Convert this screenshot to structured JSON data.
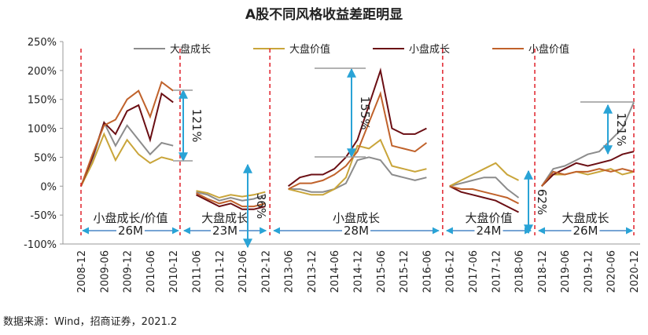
{
  "chart_data": {
    "type": "line",
    "title": "A股不同风格收益差距明显",
    "categories": [
      "2008-12",
      null,
      "2009-06",
      null,
      "2009-12",
      null,
      "2010-06",
      null,
      "2010-12",
      null,
      "2011-06",
      null,
      "2011-12",
      null,
      "2012-06",
      null,
      "2012-12",
      null,
      "2013-06",
      null,
      "2013-12",
      null,
      "2014-06",
      null,
      "2014-12",
      null,
      "2015-06",
      null,
      "2015-12",
      null,
      "2016-06",
      null,
      "2016-12",
      null,
      "2017-06",
      null,
      "2017-12",
      null,
      "2018-06",
      null,
      "2018-12",
      null,
      "2019-06",
      null,
      "2019-12",
      null,
      "2020-06",
      null,
      "2020-12"
    ],
    "series": [
      {
        "name": "大盘成长",
        "color": "#8c8c8c",
        "values": [
          0,
          45,
          110,
          70,
          105,
          80,
          55,
          75,
          70,
          null,
          -10,
          -15,
          -25,
          -20,
          -25,
          -22,
          -15,
          null,
          -5,
          -5,
          -10,
          -10,
          -5,
          5,
          45,
          50,
          45,
          20,
          15,
          10,
          15,
          null,
          0,
          5,
          10,
          15,
          15,
          -5,
          -20,
          null,
          0,
          30,
          35,
          45,
          55,
          60,
          80,
          100,
          145
        ]
      },
      {
        "name": "大盘价值",
        "color": "#c9a53a",
        "values": [
          0,
          40,
          90,
          45,
          80,
          55,
          40,
          50,
          45,
          null,
          -8,
          -12,
          -20,
          -15,
          -18,
          -15,
          -10,
          null,
          -5,
          -10,
          -15,
          -15,
          -5,
          15,
          70,
          65,
          80,
          35,
          30,
          25,
          30,
          null,
          0,
          10,
          20,
          30,
          40,
          20,
          10,
          null,
          0,
          20,
          20,
          25,
          20,
          25,
          30,
          20,
          25
        ]
      },
      {
        "name": "小盘成长",
        "color": "#6b0f14",
        "values": [
          0,
          50,
          110,
          90,
          130,
          140,
          80,
          160,
          145,
          null,
          -15,
          -25,
          -35,
          -30,
          -40,
          -40,
          -35,
          null,
          0,
          15,
          20,
          20,
          30,
          50,
          80,
          140,
          200,
          100,
          90,
          90,
          100,
          null,
          0,
          -10,
          -15,
          -20,
          -25,
          -35,
          -45,
          null,
          0,
          20,
          30,
          40,
          35,
          40,
          45,
          55,
          60
        ]
      },
      {
        "name": "小盘价值",
        "color": "#c0622b",
        "values": [
          0,
          55,
          105,
          115,
          150,
          165,
          120,
          180,
          165,
          null,
          -12,
          -22,
          -30,
          -25,
          -35,
          -35,
          -30,
          null,
          -5,
          5,
          5,
          10,
          20,
          35,
          60,
          110,
          160,
          70,
          65,
          60,
          75,
          null,
          0,
          -5,
          -5,
          -10,
          -15,
          -20,
          -30,
          null,
          0,
          25,
          20,
          25,
          25,
          30,
          25,
          30,
          25
        ]
      }
    ],
    "ylim": [
      -100,
      250
    ],
    "yticks": [
      {
        "value": -100,
        "label": "-100%"
      },
      {
        "value": -50,
        "label": "-50%"
      },
      {
        "value": 0,
        "label": "0%"
      },
      {
        "value": 50,
        "label": "50%"
      },
      {
        "value": 100,
        "label": "100%"
      },
      {
        "value": 150,
        "label": "150%"
      },
      {
        "value": 200,
        "label": "200%"
      },
      {
        "value": 250,
        "label": "250%"
      }
    ],
    "annotations": [
      "121%",
      "36%",
      "155%",
      "62%",
      "121%"
    ],
    "regimes": [
      {
        "label": "小盘成长/价值",
        "duration": "26M"
      },
      {
        "label": "大盘成长",
        "duration": "23M"
      },
      {
        "label": "小盘成长",
        "duration": "28M"
      },
      {
        "label": "大盘价值",
        "duration": "24M"
      },
      {
        "label": "大盘成长",
        "duration": "26M"
      }
    ],
    "source": "数据来源：Wind，招商证券，2021.2"
  }
}
